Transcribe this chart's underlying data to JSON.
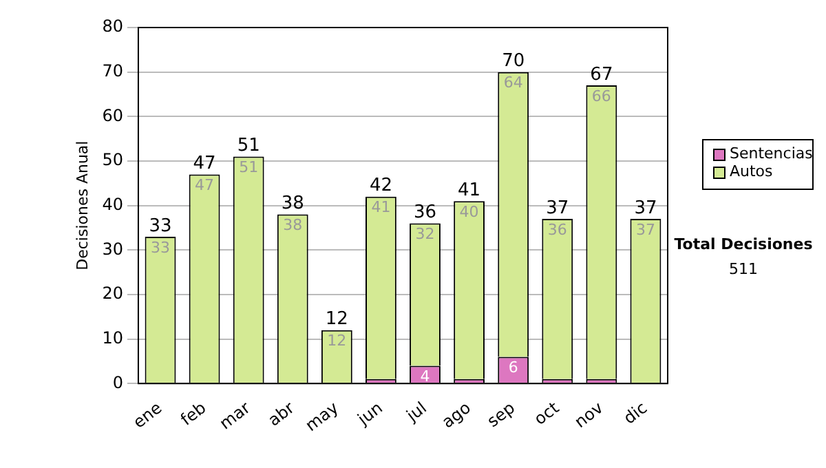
{
  "chart_data": {
    "type": "bar",
    "stacked": true,
    "ylabel": "Decisiones Anual",
    "categories": [
      "ene",
      "feb",
      "mar",
      "abr",
      "may",
      "jun",
      "jul",
      "ago",
      "sep",
      "oct",
      "nov",
      "dic"
    ],
    "series": [
      {
        "name": "Sentencias",
        "color": "#dd77c0",
        "values": [
          0,
          0,
          0,
          0,
          0,
          1,
          4,
          1,
          6,
          1,
          1,
          0
        ],
        "value_labels": [
          null,
          null,
          null,
          null,
          null,
          null,
          "4",
          null,
          "6",
          null,
          null,
          null
        ]
      },
      {
        "name": "Autos",
        "color": "#d4ea94",
        "values": [
          33,
          47,
          51,
          38,
          12,
          41,
          32,
          40,
          64,
          36,
          66,
          37
        ],
        "value_labels": [
          "33",
          "47",
          "51",
          "38",
          "12",
          "41",
          "32",
          "40",
          "64",
          "36",
          "66",
          "37"
        ]
      }
    ],
    "totals": [
      "33",
      "47",
      "51",
      "38",
      "12",
      "42",
      "36",
      "41",
      "70",
      "37",
      "67",
      "37"
    ],
    "ylim": [
      0,
      80
    ],
    "yticks": [
      0,
      10,
      20,
      30,
      40,
      50,
      60,
      70,
      80
    ],
    "grid": "y",
    "legend": "right",
    "annotations": [
      "Total Decisiones",
      "511"
    ]
  }
}
